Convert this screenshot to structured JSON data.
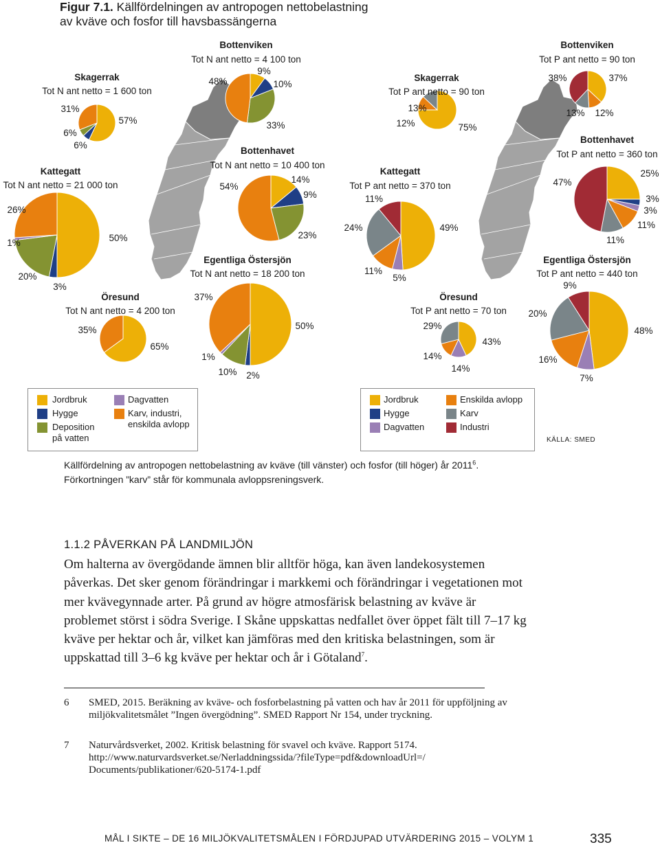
{
  "figure": {
    "label": "Figur 7.1.",
    "title_line1": "Källfördelningen av antropogen nettobelastning",
    "title_line2": "av kväve och fosfor till havsbassängerna"
  },
  "colors": {
    "jordbruk": "#EDB007",
    "hygge": "#1F3F86",
    "deposition": "#849332",
    "dagvatten": "#9A7FB5",
    "karv_industri_avlopp": "#E8800F",
    "enskilda_avlopp": "#E8800F",
    "karv": "#7A8589",
    "industri": "#A12B35",
    "map": "#A3A3A3",
    "map_dark": "#7E7E7E"
  },
  "chart_data": [
    {
      "type": "pie",
      "nutrient": "N",
      "basin": "Skagerrak",
      "total_label": "Tot N ant netto = 1 600 ton",
      "slices": [
        {
          "category": "Jordbruk",
          "value": 57,
          "label": "57%"
        },
        {
          "category": "Hygge",
          "value": 6,
          "label": "6%"
        },
        {
          "category": "Deposition på vatten",
          "value": 6,
          "label": "6%"
        },
        {
          "category": "Karv, industri, enskilda avlopp",
          "value": 31,
          "label": "31%"
        }
      ]
    },
    {
      "type": "pie",
      "nutrient": "N",
      "basin": "Kattegatt",
      "total_label": "Tot N ant netto = 21 000 ton",
      "slices": [
        {
          "category": "Jordbruk",
          "value": 50,
          "label": "50%"
        },
        {
          "category": "Hygge",
          "value": 3,
          "label": "3%"
        },
        {
          "category": "Deposition på vatten",
          "value": 20,
          "label": "20%"
        },
        {
          "category": "Dagvatten",
          "value": 1,
          "label": "1%"
        },
        {
          "category": "Karv, industri, enskilda avlopp",
          "value": 26,
          "label": "26%"
        }
      ]
    },
    {
      "type": "pie",
      "nutrient": "N",
      "basin": "Öresund",
      "total_label": "Tot N ant netto = 4 200 ton",
      "slices": [
        {
          "category": "Jordbruk",
          "value": 65,
          "label": "65%"
        },
        {
          "category": "Karv, industri, enskilda avlopp",
          "value": 35,
          "label": "35%"
        }
      ]
    },
    {
      "type": "pie",
      "nutrient": "N",
      "basin": "Bottenviken",
      "total_label": "Tot N ant netto = 4 100 ton",
      "slices": [
        {
          "category": "Jordbruk",
          "value": 10,
          "label": "10%"
        },
        {
          "category": "Hygge",
          "value": 9,
          "label": "9%"
        },
        {
          "category": "Deposition på vatten",
          "value": 33,
          "label": "33%"
        },
        {
          "category": "Karv, industri, enskilda avlopp",
          "value": 48,
          "label": "48%"
        }
      ]
    },
    {
      "type": "pie",
      "nutrient": "N",
      "basin": "Bottenhavet",
      "total_label": "Tot N ant netto = 10 400 ton",
      "slices": [
        {
          "category": "Jordbruk",
          "value": 14,
          "label": "14%"
        },
        {
          "category": "Hygge",
          "value": 9,
          "label": "9%"
        },
        {
          "category": "Deposition på vatten",
          "value": 23,
          "label": "23%"
        },
        {
          "category": "Karv, industri, enskilda avlopp",
          "value": 54,
          "label": "54%"
        }
      ]
    },
    {
      "type": "pie",
      "nutrient": "N",
      "basin": "Egentliga Östersjön",
      "total_label": "Tot N ant netto = 18 200 ton",
      "slices": [
        {
          "category": "Jordbruk",
          "value": 50,
          "label": "50%"
        },
        {
          "category": "Hygge",
          "value": 2,
          "label": "2%"
        },
        {
          "category": "Deposition på vatten",
          "value": 10,
          "label": "10%"
        },
        {
          "category": "Dagvatten",
          "value": 1,
          "label": "1%"
        },
        {
          "category": "Karv, industri, enskilda avlopp",
          "value": 37,
          "label": "37%"
        }
      ]
    },
    {
      "type": "pie",
      "nutrient": "P",
      "basin": "Skagerrak",
      "total_label": "Tot P ant netto = 90 ton",
      "slices": [
        {
          "category": "Jordbruk",
          "value": 75,
          "label": "75%"
        },
        {
          "category": "Enskilda avlopp",
          "value": 12,
          "label": "12%"
        },
        {
          "category": "Karv",
          "value": 13,
          "label": "13%"
        }
      ]
    },
    {
      "type": "pie",
      "nutrient": "P",
      "basin": "Kattegatt",
      "total_label": "Tot P ant netto = 370 ton",
      "slices": [
        {
          "category": "Jordbruk",
          "value": 49,
          "label": "49%"
        },
        {
          "category": "Dagvatten",
          "value": 5,
          "label": "5%"
        },
        {
          "category": "Enskilda avlopp",
          "value": 11,
          "label": "11%"
        },
        {
          "category": "Karv",
          "value": 24,
          "label": "24%"
        },
        {
          "category": "Industri",
          "value": 11,
          "label": "11%"
        }
      ]
    },
    {
      "type": "pie",
      "nutrient": "P",
      "basin": "Öresund",
      "total_label": "Tot P ant netto = 70 ton",
      "slices": [
        {
          "category": "Jordbruk",
          "value": 43,
          "label": "43%"
        },
        {
          "category": "Dagvatten",
          "value": 14,
          "label": "14%"
        },
        {
          "category": "Enskilda avlopp",
          "value": 14,
          "label": "14%"
        },
        {
          "category": "Karv",
          "value": 29,
          "label": "29%"
        }
      ]
    },
    {
      "type": "pie",
      "nutrient": "P",
      "basin": "Bottenviken",
      "total_label": "Tot P ant netto = 90 ton",
      "slices": [
        {
          "category": "Jordbruk",
          "value": 37,
          "label": "37%"
        },
        {
          "category": "Enskilda avlopp",
          "value": 12,
          "label": "12%"
        },
        {
          "category": "Karv",
          "value": 13,
          "label": "13%"
        },
        {
          "category": "Industri",
          "value": 38,
          "label": "38%"
        }
      ]
    },
    {
      "type": "pie",
      "nutrient": "P",
      "basin": "Bottenhavet",
      "total_label": "Tot P ant netto = 360 ton",
      "slices": [
        {
          "category": "Jordbruk",
          "value": 25,
          "label": "25%"
        },
        {
          "category": "Hygge",
          "value": 3,
          "label": "3%"
        },
        {
          "category": "Dagvatten",
          "value": 3,
          "label": "3%"
        },
        {
          "category": "Enskilda avlopp",
          "value": 11,
          "label": "11%"
        },
        {
          "category": "Karv",
          "value": 11,
          "label": "11%"
        },
        {
          "category": "Industri",
          "value": 47,
          "label": "47%"
        }
      ]
    },
    {
      "type": "pie",
      "nutrient": "P",
      "basin": "Egentliga Östersjön",
      "total_label": "Tot P ant netto = 440 ton",
      "slices": [
        {
          "category": "Jordbruk",
          "value": 48,
          "label": "48%"
        },
        {
          "category": "Dagvatten",
          "value": 7,
          "label": "7%"
        },
        {
          "category": "Enskilda avlopp",
          "value": 16,
          "label": "16%"
        },
        {
          "category": "Karv",
          "value": 20,
          "label": "20%"
        },
        {
          "category": "Industri",
          "value": 9,
          "label": "9%"
        }
      ]
    }
  ],
  "legend_n": [
    {
      "label": "Jordbruk",
      "color": "#EDB007"
    },
    {
      "label": "Hygge",
      "color": "#1F3F86"
    },
    {
      "label": "Deposition",
      "label2": "på vatten",
      "color": "#849332"
    },
    {
      "label": "Dagvatten",
      "color": "#9A7FB5"
    },
    {
      "label": "Karv, industri,",
      "label2": "enskilda avlopp",
      "color": "#E8800F"
    }
  ],
  "legend_p": [
    {
      "label": "Jordbruk",
      "color": "#EDB007"
    },
    {
      "label": "Hygge",
      "color": "#1F3F86"
    },
    {
      "label": "Dagvatten",
      "color": "#9A7FB5"
    },
    {
      "label": "Enskilda avlopp",
      "color": "#E8800F"
    },
    {
      "label": "Karv",
      "color": "#7A8589"
    },
    {
      "label": "Industri",
      "color": "#A12B35"
    }
  ],
  "source": "KÄLLA: SMED",
  "caption": {
    "line1": "Källfördelning av antropogen nettobelastning av kväve (till vänster) och fosfor (till höger) år 2011",
    "line1_sup": "6",
    "line1_end": ".",
    "line2": "Förkortningen ”karv” står för kommunala avloppsreningsverk."
  },
  "section": {
    "heading": "1.1.2 PÅVERKAN PÅ LANDMILJÖN",
    "body": "Om halterna av övergödande ämnen blir alltför höga, kan även landekosystemen påverkas. Det sker genom förändringar i markkemi och förändringar i vegetationen mot mer kvävegynnade arter. På grund av högre atmosfärisk belastning av kväve är problemet störst i södra Sverige. I Skåne uppskattas nedfallet över öppet fält till 7–17 kg kväve per hektar och år, vilket kan jämföras med den kritiska belastningen, som är uppskattad till 3–6 kg kväve per hektar och år i Götaland",
    "body_sup": "7",
    "body_end": "."
  },
  "footnotes": [
    {
      "num": "6",
      "text": "SMED, 2015. Beräkning av kväve- och fosforbelastning på vatten och hav år 2011 för uppföljning av miljökvalitetsmålet ”Ingen övergödning”. SMED Rapport Nr 154, under tryckning."
    },
    {
      "num": "7",
      "text": "Naturvårdsverket, 2002. Kritisk belastning för svavel och kväve. Rapport 5174. http://www.naturvardsverket.se/Nerladdningssida/?fileType=pdf&downloadUrl=/ Documents/publikationer/620-5174-1.pdf"
    }
  ],
  "footer": {
    "running_title": "MÅL I SIKTE – DE 16 MILJÖKVALITETSMÅLEN I FÖRDJUPAD UTVÄRDERING 2015 – VOLYM 1",
    "page_number": "335"
  }
}
